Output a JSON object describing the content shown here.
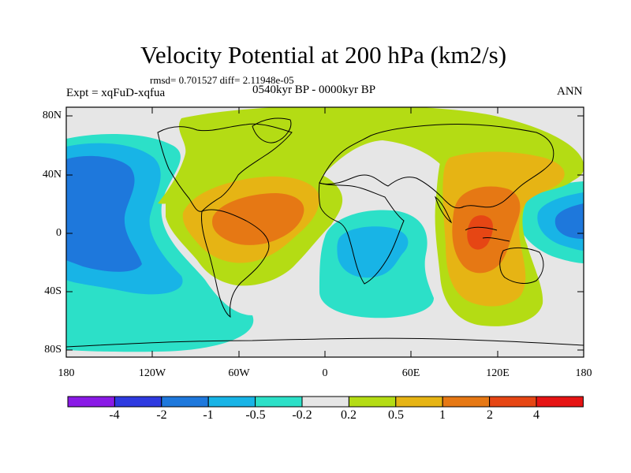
{
  "title": "Velocity Potential at 200 hPa (km2/s)",
  "stats": "rmsd= 0.701527   diff= 2.11948e-05",
  "experiment": "Expt = xqFuD-xqfua",
  "period": "0540kyr BP - 0000kyr BP",
  "season": "ANN",
  "lat_labels": [
    "80N",
    "40N",
    "0",
    "40S",
    "80S"
  ],
  "lon_labels": [
    "180",
    "120W",
    "60W",
    "0",
    "60E",
    "120E",
    "180"
  ],
  "colorbar": {
    "labels": [
      "-4",
      "-2",
      "-1",
      "-0.5",
      "-0.2",
      "0.2",
      "0.5",
      "1",
      "2",
      "4"
    ],
    "colors": [
      "#8a1ae6",
      "#2e3ae0",
      "#1e78dc",
      "#18b4e6",
      "#2ce0c8",
      "#e6e6e6",
      "#b4dc14",
      "#e6b414",
      "#e67814",
      "#e64614",
      "#e61414"
    ]
  }
}
